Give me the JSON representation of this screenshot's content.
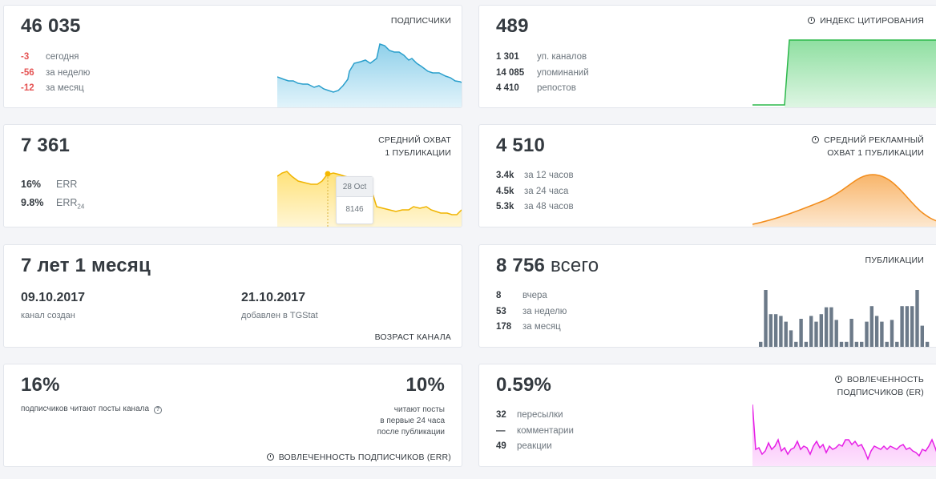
{
  "subscribers": {
    "value": "46 035",
    "label": "ПОДПИСЧИКИ",
    "rows": [
      {
        "num": "-3",
        "text": "сегодня"
      },
      {
        "num": "-56",
        "text": "за неделю"
      },
      {
        "num": "-12",
        "text": "за месяц"
      }
    ],
    "color": "#3aaad4"
  },
  "citation": {
    "value": "489",
    "label": "ИНДЕКС ЦИТИРОВАНИЯ",
    "icon": "info-icon",
    "rows": [
      {
        "num": "1 301",
        "text": "уп. каналов"
      },
      {
        "num": "14 085",
        "text": "упоминаний"
      },
      {
        "num": "4 410",
        "text": "репостов"
      }
    ],
    "color": "#3cc05a"
  },
  "reach": {
    "value": "7 361",
    "label_line1": "СРЕДНИЙ ОХВАТ",
    "label_line2": "1 ПУБЛИКАЦИИ",
    "rows": [
      {
        "num": "16%",
        "text": "ERR"
      },
      {
        "num": "9.8%",
        "text": "ERR",
        "sub": "24"
      }
    ],
    "tooltip_date": "28 Oct",
    "tooltip_value": "8146",
    "color": "#f5c000"
  },
  "ad_reach": {
    "value": "4 510",
    "label_line1": "СРЕДНИЙ РЕКЛАМНЫЙ",
    "label_line2": "ОХВАТ 1 ПУБЛИКАЦИИ",
    "icon": "info-icon",
    "rows": [
      {
        "num": "3.4k",
        "text": "за 12 часов"
      },
      {
        "num": "4.5k",
        "text": "за 24 часа"
      },
      {
        "num": "5.3k",
        "text": "за 48 часов"
      }
    ],
    "color": "#f28c1a"
  },
  "age": {
    "value": "7 лет 1 месяц",
    "created_date": "09.10.2017",
    "created_label": "канал создан",
    "added_date": "21.10.2017",
    "added_label": "добавлен в TGStat",
    "label": "ВОЗРАСТ КАНАЛА"
  },
  "posts": {
    "value": "8 756",
    "value_suffix": "всего",
    "label": "ПУБЛИКАЦИИ",
    "rows": [
      {
        "num": "8",
        "text": "вчера"
      },
      {
        "num": "53",
        "text": "за неделю"
      },
      {
        "num": "178",
        "text": "за месяц"
      }
    ],
    "bars": [
      0.1,
      1.0,
      0.58,
      0.58,
      0.55,
      0.45,
      0.3,
      0.1,
      0.5,
      0.1,
      0.55,
      0.45,
      0.58,
      0.7,
      0.7,
      0.48,
      0.1,
      0.1,
      0.5,
      0.1,
      0.1,
      0.45,
      0.72,
      0.55,
      0.45,
      0.1,
      0.48,
      0.1,
      0.72,
      0.72,
      0.72,
      1.0,
      0.38,
      0.1
    ],
    "color": "#6c7a89"
  },
  "err": {
    "value": "16%",
    "text": "подписчиков читают посты канала",
    "value24": "10%",
    "text24_line1": "читают посты",
    "text24_line2": "в первые 24 часа",
    "text24_line3": "после публикации",
    "footer": "ВОВЛЕЧЕННОСТЬ ПОДПИСЧИКОВ (ERR)"
  },
  "er": {
    "value": "0.59%",
    "label_line1": "ВОВЛЕЧЕННОСТЬ",
    "label_line2": "ПОДПИСЧИКОВ (ER)",
    "rows": [
      {
        "num": "32",
        "text": "пересылки"
      },
      {
        "num": "—",
        "text": "комментарии"
      },
      {
        "num": "49",
        "text": "реакции"
      }
    ],
    "color": "#e61ee6"
  }
}
